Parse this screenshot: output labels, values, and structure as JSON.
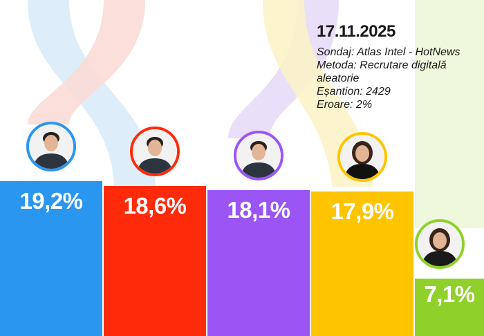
{
  "poll": {
    "date": "17.11.2025",
    "source": "Sondaj: Atlas Intel - HotNews",
    "method": "Metoda: Recrutare digitală aleatorie",
    "sample": "Eșantion: 2429",
    "error": "Eroare: 2%"
  },
  "chart_data": {
    "type": "bar",
    "values": [
      19.2,
      18.6,
      18.1,
      17.9,
      7.1
    ],
    "value_labels": [
      "19,2%",
      "18,6%",
      "18,1%",
      "17,9%",
      "7,1%"
    ],
    "colors": [
      "#2a96f0",
      "#ff2a0a",
      "#9b55f5",
      "#ffc400",
      "#8fd12a"
    ],
    "avatar_icons": [
      "person-photo-icon",
      "person-photo-icon",
      "person-photo-icon",
      "person-photo-icon",
      "person-photo-icon"
    ],
    "ylim": [
      0,
      20
    ]
  },
  "ribbon_colors": [
    "#d9ecfa",
    "#f9dcd6",
    "#e8dcf8",
    "#fbf3c8",
    "#edf6d8"
  ]
}
